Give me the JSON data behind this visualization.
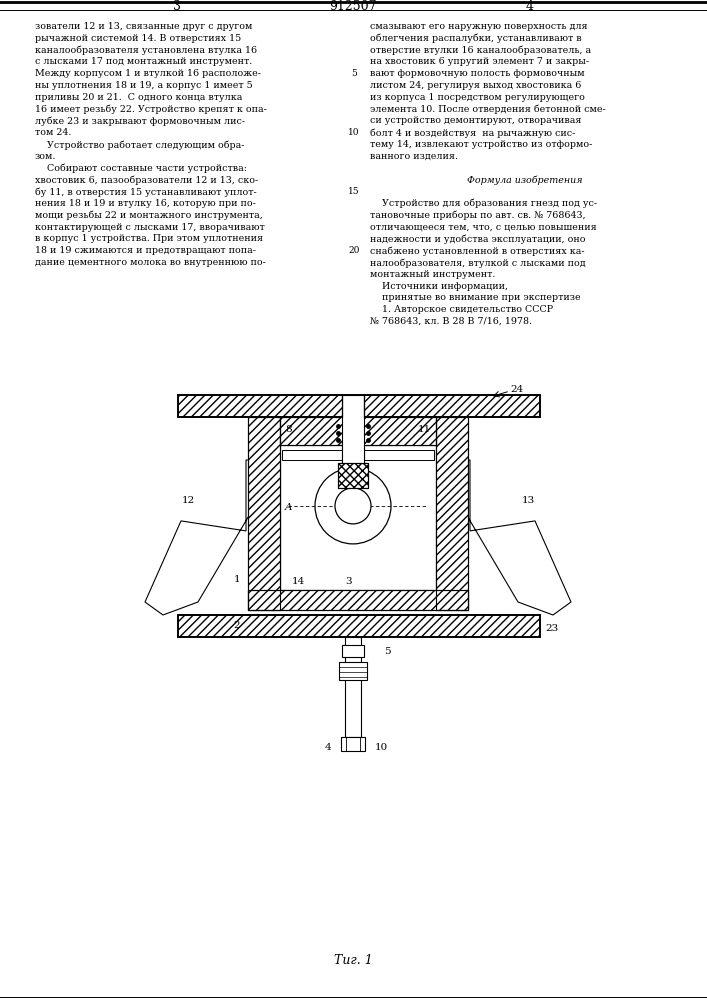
{
  "patent_number": "912507",
  "page_left": "3",
  "page_right": "4",
  "bg_color": "#ffffff",
  "fig_label": "Τиг. 1",
  "left_col_text": [
    "зователи 12 и 13, связанные друг с другом",
    "рычажной системой 14. В отверстиях 15",
    "каналообразователя установлена втулка 16",
    "с лысками 17 под монтажный инструмент.",
    "Между корпусом 1 и втулкой 16 расположе-",
    "ны уплотнения 18 и 19, а корпус 1 имеет 5",
    "приливы 20 и 21.  С одного конца втулка",
    "16 имеет резьбу 22. Устройство крепят к опа-",
    "лубке 23 и закрывают формовочным лис-",
    "том 24.",
    "    Устройство работает следующим обра-",
    "зом.",
    "    Собирают составные части устройства:",
    "хвостовик 6, пазообразователи 12 и 13, ско-",
    "бу 11, в отверстия 15 устанавливают уплот-",
    "нения 18 и 19 и втулку 16, которую при по-",
    "мощи резьбы 22 и монтажного инструмента,",
    "контактирующей с лысками 17, вворачивают",
    "в корпус 1 устройства. При этом уплотнения",
    "18 и 19 сжимаются и предотвращают попа-",
    "дание цементного молока во внутреннюю по-"
  ],
  "right_col_text": [
    "смазывают его наружную поверхность для",
    "облегчения распалубки, устанавливают в",
    "отверстие втулки 16 каналообразователь, а",
    "на хвостовик 6 упругий элемент 7 и закры-",
    "вают формовочную полость формовочным",
    "листом 24, регулируя выход хвостовика 6",
    "из корпуса 1 посредством регулирующего",
    "элемента 10. После отвердения бетонной сме-",
    "си устройство демонтируют, отворачивая",
    "болт 4 и воздействуя  на рычажную сис-",
    "тему 14, извлекают устройство из отформо-",
    "ванного изделия.",
    "",
    "    Формула изобретения",
    "",
    "    Устройство для образования гнезд под ус-",
    "тановочные приборы по авт. св. № 768643,",
    "отличающееся тем, что, с целью повышения",
    "надежности и удобства эксплуатации, оно",
    "снабжено установленной в отверстиях ка-",
    "налообразователя, втулкой с лысками под",
    "монтажный инструмент.",
    "    Источники информации,",
    "    принятые во внимание при экспертизе",
    "    1. Авторское свидетельство СССР",
    "№ 768643, кл. В 28 В 7/16, 1978."
  ],
  "italic_line_idx": 13
}
